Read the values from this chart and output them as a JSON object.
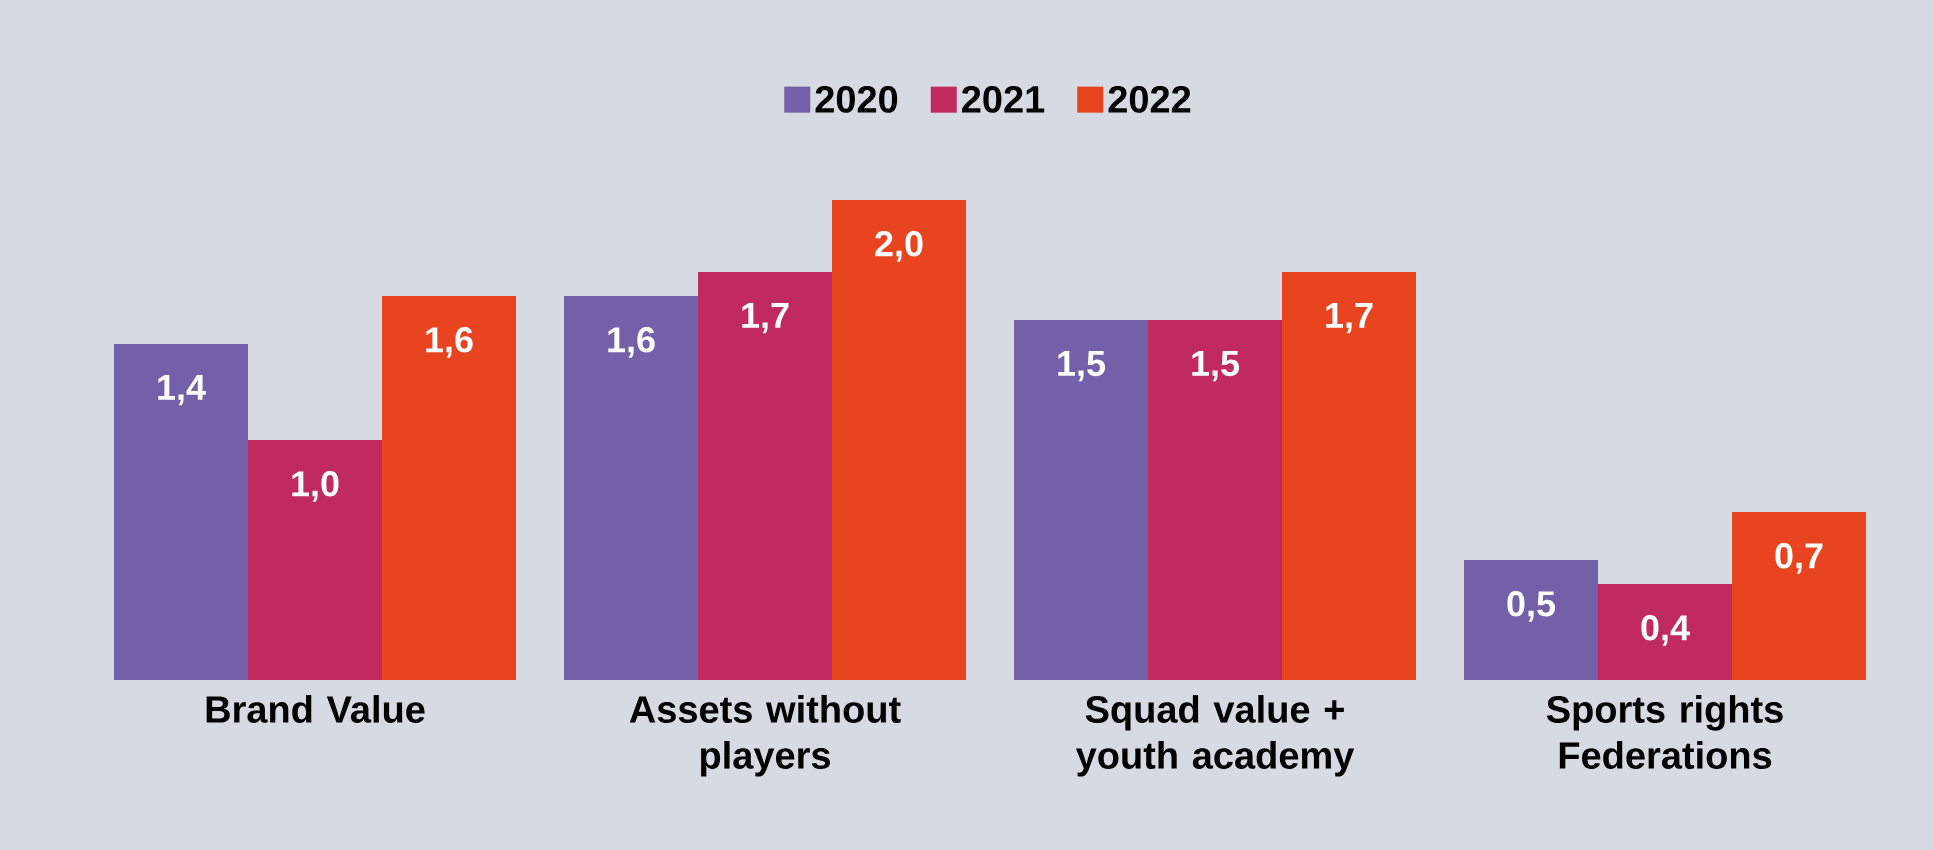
{
  "chart_data": {
    "type": "bar",
    "categories": [
      "Brand Value",
      "Assets without players",
      "Squad value + youth academy",
      "Sports rights Federations"
    ],
    "series": [
      {
        "name": "2020",
        "color": "#7360a8",
        "values": [
          1.4,
          1.6,
          1.5,
          0.5
        ],
        "value_labels": [
          "1,4",
          "1,6",
          "1,5",
          "0,5"
        ]
      },
      {
        "name": "2021",
        "color": "#c02a5e",
        "values": [
          1.0,
          1.7,
          1.5,
          0.4
        ],
        "value_labels": [
          "1,0",
          "1,7",
          "1,5",
          "0,4"
        ]
      },
      {
        "name": "2022",
        "color": "#e8441f",
        "values": [
          1.6,
          2.0,
          1.7,
          0.7
        ],
        "value_labels": [
          "1,6",
          "2,0",
          "1,7",
          "0,7"
        ]
      }
    ],
    "legend": "top"
  }
}
